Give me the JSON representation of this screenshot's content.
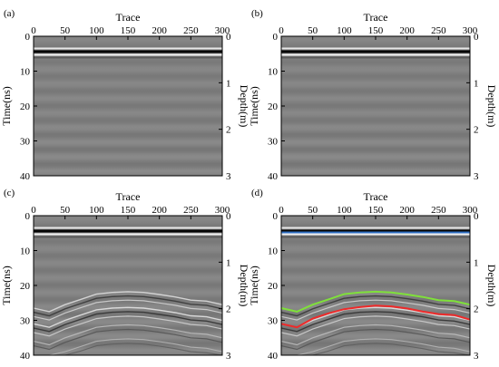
{
  "chart_data": [
    {
      "label": "(a)",
      "type": "heatmap",
      "xlabel": "Trace",
      "ylabel": "Time(ns)",
      "y2label": "Depth(m)",
      "xlim": [
        0,
        300
      ],
      "ylim": [
        0,
        40
      ],
      "y2lim": [
        0,
        3
      ],
      "xticks": [
        "0",
        "50",
        "100",
        "150",
        "200",
        "250",
        "300"
      ],
      "yticks": [
        "0",
        "10",
        "20",
        "30",
        "40"
      ],
      "y2ticks": [
        "0",
        "1",
        "2",
        "3"
      ],
      "reflection_bands": false,
      "direct_wave_time_ns": 4.8,
      "picked_lines": []
    },
    {
      "label": "(b)",
      "type": "heatmap",
      "xlabel": "Trace",
      "ylabel": "Time(ns)",
      "y2label": "Depth(m)",
      "xlim": [
        0,
        300
      ],
      "ylim": [
        0,
        40
      ],
      "y2lim": [
        0,
        3
      ],
      "xticks": [
        "0",
        "50",
        "100",
        "150",
        "200",
        "250",
        "300"
      ],
      "yticks": [
        "0",
        "10",
        "20",
        "30",
        "40"
      ],
      "y2ticks": [
        "0",
        "1",
        "2",
        "3"
      ],
      "reflection_bands": false,
      "direct_wave_time_ns": 4.8,
      "picked_lines": []
    },
    {
      "label": "(c)",
      "type": "heatmap",
      "xlabel": "Trace",
      "ylabel": "Time(ns)",
      "y2label": "Depth(m)",
      "xlim": [
        0,
        300
      ],
      "ylim": [
        0,
        40
      ],
      "y2lim": [
        0,
        3
      ],
      "xticks": [
        "0",
        "50",
        "100",
        "150",
        "200",
        "250",
        "300"
      ],
      "yticks": [
        "0",
        "10",
        "20",
        "30",
        "40"
      ],
      "y2ticks": [
        "0",
        "1",
        "2",
        "3"
      ],
      "reflection_bands": true,
      "direct_wave_time_ns": 4.8,
      "picked_lines": []
    },
    {
      "label": "(d)",
      "type": "heatmap",
      "xlabel": "Trace",
      "ylabel": "Time(ns)",
      "y2label": "Depth(m)",
      "xlim": [
        0,
        300
      ],
      "ylim": [
        0,
        40
      ],
      "y2lim": [
        0,
        3
      ],
      "xticks": [
        "0",
        "50",
        "100",
        "150",
        "200",
        "250",
        "300"
      ],
      "yticks": [
        "0",
        "10",
        "20",
        "30",
        "40"
      ],
      "y2ticks": [
        "0",
        "1",
        "2",
        "3"
      ],
      "reflection_bands": true,
      "direct_wave_time_ns": 4.8,
      "picked_lines": [
        {
          "color": "#2f6fc4",
          "x": [
            0,
            300
          ],
          "y": [
            4.8,
            4.8
          ]
        },
        {
          "color": "#7fe03a",
          "x": [
            0,
            25,
            50,
            75,
            100,
            125,
            150,
            175,
            200,
            225,
            250,
            275,
            300
          ],
          "y": [
            26.5,
            27.5,
            25.5,
            24.0,
            22.5,
            22.0,
            21.8,
            22.0,
            22.6,
            23.3,
            24.2,
            24.5,
            25.5
          ]
        },
        {
          "color": "#ee2a2a",
          "x": [
            0,
            25,
            50,
            75,
            100,
            125,
            150,
            175,
            200,
            225,
            250,
            275,
            300
          ],
          "y": [
            31.0,
            32.0,
            29.5,
            28.0,
            26.8,
            26.2,
            25.8,
            26.0,
            26.6,
            27.5,
            28.2,
            28.5,
            29.8
          ]
        }
      ]
    }
  ],
  "colors": {
    "background": "#7f7f7f",
    "frame": "#000000"
  }
}
